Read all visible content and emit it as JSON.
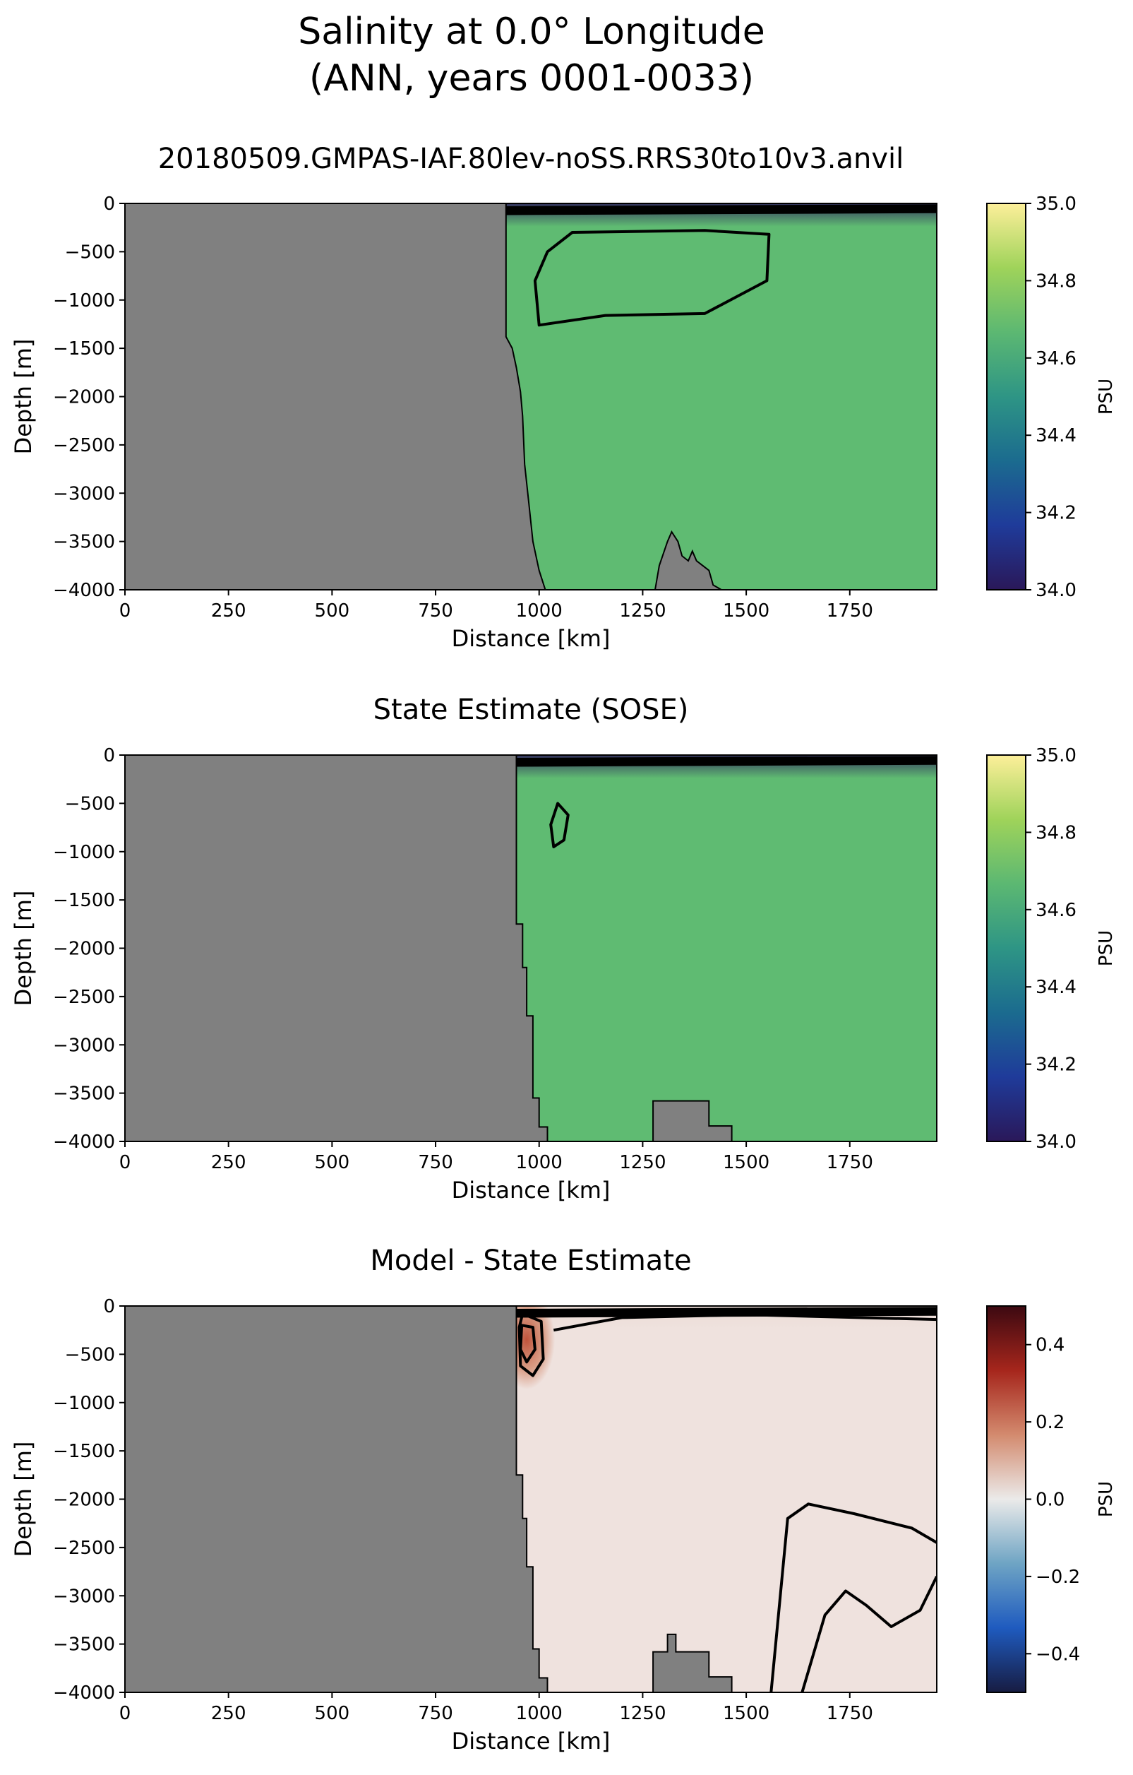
{
  "figure": {
    "title_line1": "Salinity at 0.0° Longitude",
    "title_line2": "(ANN, years 0001-0033)"
  },
  "chart_data": [
    {
      "type": "heatmap",
      "title": "20180509.GMPAS-IAF.80lev-noSS.RRS30to10v3.anvil",
      "xlabel": "Distance [km]",
      "ylabel": "Depth [m]",
      "xlim": [
        0,
        1960
      ],
      "ylim": [
        -4000,
        0
      ],
      "x_ticks": [
        "0",
        "250",
        "500",
        "750",
        "1000",
        "1250",
        "1500",
        "1750"
      ],
      "y_ticks": [
        "0",
        "−500",
        "−1000",
        "−1500",
        "−2000",
        "−2500",
        "−3000",
        "−3500",
        "−4000"
      ],
      "colorbar": {
        "label": "PSU",
        "range": [
          34.0,
          35.0
        ],
        "ticks": [
          "34.0",
          "34.2",
          "34.4",
          "34.6",
          "34.8",
          "35.0"
        ],
        "colormap": "haline",
        "colors": [
          "#2a1859",
          "#1f3b9a",
          "#1b6b8f",
          "#2e9585",
          "#5cb872",
          "#9fd35a",
          "#fdef9a"
        ]
      },
      "field_color": "#5fbb72",
      "land_color": "#808080",
      "contour_color": "#000000",
      "land_boundary": [
        [
          0,
          0
        ],
        [
          920,
          0
        ],
        [
          920,
          -1380
        ],
        [
          935,
          -1500
        ],
        [
          945,
          -1700
        ],
        [
          955,
          -1950
        ],
        [
          960,
          -2200
        ],
        [
          965,
          -2700
        ],
        [
          975,
          -3100
        ],
        [
          985,
          -3500
        ],
        [
          1000,
          -3800
        ],
        [
          1015,
          -4000
        ]
      ],
      "seamount": [
        [
          1280,
          -4000
        ],
        [
          1290,
          -3750
        ],
        [
          1310,
          -3500
        ],
        [
          1320,
          -3400
        ],
        [
          1335,
          -3500
        ],
        [
          1345,
          -3650
        ],
        [
          1360,
          -3700
        ],
        [
          1370,
          -3600
        ],
        [
          1380,
          -3700
        ],
        [
          1395,
          -3750
        ],
        [
          1410,
          -3800
        ],
        [
          1420,
          -3950
        ],
        [
          1440,
          -4000
        ]
      ],
      "contours": [
        {
          "level": "34.7",
          "points": [
            [
              1080,
              -300
            ],
            [
              1400,
              -280
            ],
            [
              1555,
              -320
            ],
            [
              1550,
              -800
            ],
            [
              1400,
              -1140
            ],
            [
              1160,
              -1160
            ],
            [
              1000,
              -1260
            ],
            [
              990,
              -800
            ],
            [
              1020,
              -500
            ]
          ],
          "closed": true
        }
      ]
    },
    {
      "type": "heatmap",
      "title": "State Estimate (SOSE)",
      "xlabel": "Distance [km]",
      "ylabel": "Depth [m]",
      "xlim": [
        0,
        1960
      ],
      "ylim": [
        -4000,
        0
      ],
      "x_ticks": [
        "0",
        "250",
        "500",
        "750",
        "1000",
        "1250",
        "1500",
        "1750"
      ],
      "y_ticks": [
        "0",
        "−500",
        "−1000",
        "−1500",
        "−2000",
        "−2500",
        "−3000",
        "−3500",
        "−4000"
      ],
      "colorbar": {
        "label": "PSU",
        "range": [
          34.0,
          35.0
        ],
        "ticks": [
          "34.0",
          "34.2",
          "34.4",
          "34.6",
          "34.8",
          "35.0"
        ],
        "colormap": "haline",
        "colors": [
          "#2a1859",
          "#1f3b9a",
          "#1b6b8f",
          "#2e9585",
          "#5cb872",
          "#9fd35a",
          "#fdef9a"
        ]
      },
      "field_color": "#5fbb72",
      "land_color": "#808080",
      "contour_color": "#000000",
      "land_boundary": [
        [
          0,
          0
        ],
        [
          945,
          0
        ],
        [
          945,
          -1750
        ],
        [
          960,
          -1750
        ],
        [
          960,
          -2200
        ],
        [
          970,
          -2200
        ],
        [
          970,
          -2700
        ],
        [
          985,
          -2700
        ],
        [
          985,
          -3550
        ],
        [
          1000,
          -3550
        ],
        [
          1000,
          -3850
        ],
        [
          1020,
          -3850
        ],
        [
          1020,
          -4000
        ]
      ],
      "seamount": [
        [
          1275,
          -4000
        ],
        [
          1275,
          -3580
        ],
        [
          1410,
          -3580
        ],
        [
          1410,
          -3840
        ],
        [
          1465,
          -3840
        ],
        [
          1465,
          -4000
        ]
      ],
      "contours": [
        {
          "level": "34.7",
          "points": [
            [
              1045,
              -500
            ],
            [
              1070,
              -620
            ],
            [
              1060,
              -880
            ],
            [
              1035,
              -950
            ],
            [
              1028,
              -720
            ]
          ],
          "closed": true
        }
      ]
    },
    {
      "type": "heatmap",
      "title": "Model - State Estimate",
      "xlabel": "Distance [km]",
      "ylabel": "Depth [m]",
      "xlim": [
        0,
        1960
      ],
      "ylim": [
        -4000,
        0
      ],
      "x_ticks": [
        "0",
        "250",
        "500",
        "750",
        "1000",
        "1250",
        "1500",
        "1750"
      ],
      "y_ticks": [
        "0",
        "−500",
        "−1000",
        "−1500",
        "−2000",
        "−2500",
        "−3000",
        "−3500",
        "−4000"
      ],
      "colorbar": {
        "label": "PSU",
        "range": [
          -0.5,
          0.5
        ],
        "ticks": [
          "−0.4",
          "−0.2",
          "0.0",
          "0.2",
          "0.4"
        ],
        "tick_values": [
          -0.4,
          -0.2,
          0.0,
          0.2,
          0.4
        ],
        "colormap": "balance",
        "colors": [
          "#171c42",
          "#1f5bbf",
          "#6ea4c4",
          "#ebeae9",
          "#d38a6e",
          "#a6261c",
          "#3c0911"
        ]
      },
      "field_color": "#efe2de",
      "land_color": "#808080",
      "contour_color": "#000000",
      "land_boundary": [
        [
          0,
          0
        ],
        [
          945,
          0
        ],
        [
          945,
          -1750
        ],
        [
          960,
          -1750
        ],
        [
          960,
          -2200
        ],
        [
          970,
          -2200
        ],
        [
          970,
          -2700
        ],
        [
          985,
          -2700
        ],
        [
          985,
          -3550
        ],
        [
          1000,
          -3550
        ],
        [
          1000,
          -3850
        ],
        [
          1020,
          -3850
        ],
        [
          1020,
          -4000
        ]
      ],
      "seamount": [
        [
          1275,
          -4000
        ],
        [
          1275,
          -3580
        ],
        [
          1310,
          -3580
        ],
        [
          1310,
          -3400
        ],
        [
          1330,
          -3400
        ],
        [
          1330,
          -3580
        ],
        [
          1410,
          -3580
        ],
        [
          1410,
          -3840
        ],
        [
          1465,
          -3840
        ],
        [
          1465,
          -4000
        ]
      ],
      "hotspot": {
        "x": 970,
        "y": -350,
        "value": 0.25
      },
      "contours": [
        {
          "level": "0.1",
          "points": [
            [
              960,
              -80
            ],
            [
              1005,
              -160
            ],
            [
              1010,
              -550
            ],
            [
              985,
              -720
            ],
            [
              955,
              -620
            ],
            [
              952,
              -220
            ]
          ],
          "closed": true
        },
        {
          "level": "0.2",
          "points": [
            [
              958,
              -200
            ],
            [
              985,
              -220
            ],
            [
              990,
              -450
            ],
            [
              970,
              -580
            ],
            [
              955,
              -450
            ]
          ],
          "closed": true
        },
        {
          "level": "0.0",
          "points": [
            [
              1035,
              -250
            ],
            [
              1200,
              -120
            ],
            [
              1500,
              -90
            ],
            [
              1960,
              -140
            ]
          ],
          "closed": false
        },
        {
          "level": "0.0",
          "points": [
            [
              1560,
              -4000
            ],
            [
              1600,
              -2200
            ],
            [
              1650,
              -2050
            ],
            [
              1760,
              -2150
            ],
            [
              1900,
              -2300
            ],
            [
              1960,
              -2450
            ]
          ],
          "closed": false
        },
        {
          "level": "0.0",
          "points": [
            [
              1635,
              -4000
            ],
            [
              1690,
              -3200
            ],
            [
              1740,
              -2950
            ],
            [
              1790,
              -3100
            ],
            [
              1850,
              -3320
            ],
            [
              1920,
              -3150
            ],
            [
              1960,
              -2800
            ]
          ],
          "closed": false
        }
      ]
    }
  ]
}
